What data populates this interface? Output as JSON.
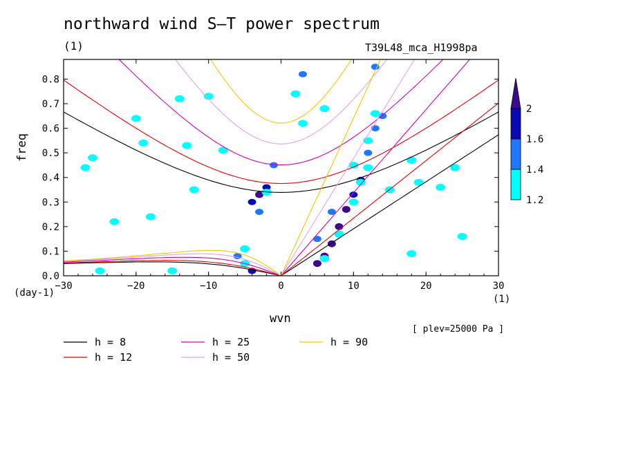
{
  "chart_data": {
    "type": "heatmap",
    "title": "northward wind S–T power spectrum",
    "units_label": "(1)",
    "run_id": "T39L48_mca_H1998pa",
    "xlabel": "wvn",
    "ylabel": "freq",
    "x_unit": "(1)",
    "y_unit": "(day-1)",
    "level_note": "[ plev=25000 Pa ]",
    "xlim": [
      -30,
      30
    ],
    "ylim": [
      0,
      0.88
    ],
    "x_ticks": [
      "−30",
      "−20",
      "−10",
      "0",
      "10",
      "20",
      "30"
    ],
    "y_ticks": [
      "0.0",
      "0.1",
      "0.2",
      "0.3",
      "0.4",
      "0.5",
      "0.6",
      "0.7",
      "0.8"
    ],
    "colorbar": {
      "levels": [
        "1.2",
        "1.4",
        "1.6",
        "2"
      ],
      "colors": [
        "#00ffff",
        "#1e78ff",
        "#0a0ab4",
        "#3c0a8c"
      ]
    },
    "power_regions": [
      {
        "x": -3,
        "y": 0.33,
        "level": 3
      },
      {
        "x": -2,
        "y": 0.36,
        "level": 2
      },
      {
        "x": -4,
        "y": 0.3,
        "level": 2
      },
      {
        "x": -5,
        "y": 0.11,
        "level": 3
      },
      {
        "x": -5,
        "y": 0.05,
        "level": 3
      },
      {
        "x": -4,
        "y": 0.02,
        "level": 2
      },
      {
        "x": 5,
        "y": 0.05,
        "level": 3
      },
      {
        "x": 6,
        "y": 0.08,
        "level": 3
      },
      {
        "x": 7,
        "y": 0.13,
        "level": 3
      },
      {
        "x": 8,
        "y": 0.2,
        "level": 3
      },
      {
        "x": 9,
        "y": 0.27,
        "level": 3
      },
      {
        "x": 10,
        "y": 0.33,
        "level": 2
      },
      {
        "x": 11,
        "y": 0.39,
        "level": 2
      },
      {
        "x": 10,
        "y": 0.45,
        "level": 2
      },
      {
        "x": 12,
        "y": 0.55,
        "level": 2
      },
      {
        "x": 13,
        "y": 0.6,
        "level": 1
      },
      {
        "x": 14,
        "y": 0.65,
        "level": 1
      },
      {
        "x": 13,
        "y": 0.85,
        "level": 1
      },
      {
        "x": -1,
        "y": 0.45,
        "level": 1
      },
      {
        "x": 3,
        "y": 0.82,
        "level": 1
      },
      {
        "x": 12,
        "y": 0.5,
        "level": 1
      },
      {
        "x": 7,
        "y": 0.26,
        "level": 1
      },
      {
        "x": 5,
        "y": 0.15,
        "level": 1
      },
      {
        "x": -6,
        "y": 0.08,
        "level": 1
      },
      {
        "x": -3,
        "y": 0.26,
        "level": 1
      },
      {
        "x": -26,
        "y": 0.48,
        "level": 0
      },
      {
        "x": -20,
        "y": 0.64,
        "level": 0
      },
      {
        "x": -19,
        "y": 0.54,
        "level": 0
      },
      {
        "x": -14,
        "y": 0.72,
        "level": 0
      },
      {
        "x": -13,
        "y": 0.53,
        "level": 0
      },
      {
        "x": -10,
        "y": 0.73,
        "level": 0
      },
      {
        "x": -8,
        "y": 0.51,
        "level": 0
      },
      {
        "x": 2,
        "y": 0.74,
        "level": 0
      },
      {
        "x": 6,
        "y": 0.68,
        "level": 0
      },
      {
        "x": 3,
        "y": 0.62,
        "level": 0
      },
      {
        "x": 12,
        "y": 0.44,
        "level": 0
      },
      {
        "x": 15,
        "y": 0.35,
        "level": 0
      },
      {
        "x": 19,
        "y": 0.38,
        "level": 0
      },
      {
        "x": 22,
        "y": 0.36,
        "level": 0
      },
      {
        "x": 18,
        "y": 0.47,
        "level": 0
      },
      {
        "x": 24,
        "y": 0.44,
        "level": 0
      },
      {
        "x": -27,
        "y": 0.44,
        "level": 0
      },
      {
        "x": -23,
        "y": 0.22,
        "level": 0
      },
      {
        "x": -18,
        "y": 0.24,
        "level": 0
      },
      {
        "x": -12,
        "y": 0.35,
        "level": 0
      },
      {
        "x": -15,
        "y": 0.02,
        "level": 0
      },
      {
        "x": -25,
        "y": 0.02,
        "level": 0
      },
      {
        "x": 18,
        "y": 0.09,
        "level": 0
      },
      {
        "x": 25,
        "y": 0.16,
        "level": 0
      },
      {
        "x": -5,
        "y": 0.11,
        "level": 0
      },
      {
        "x": -5,
        "y": 0.05,
        "level": 0
      },
      {
        "x": -2,
        "y": 0.34,
        "level": 0
      },
      {
        "x": 6,
        "y": 0.07,
        "level": 0
      },
      {
        "x": 8,
        "y": 0.17,
        "level": 0
      },
      {
        "x": 10,
        "y": 0.3,
        "level": 0
      },
      {
        "x": 11,
        "y": 0.38,
        "level": 0
      },
      {
        "x": 12,
        "y": 0.55,
        "level": 0
      },
      {
        "x": 10,
        "y": 0.45,
        "level": 0
      },
      {
        "x": 13,
        "y": 0.66,
        "level": 0
      }
    ],
    "series": [
      {
        "name": "h =  8",
        "h": 8,
        "color": "#000000"
      },
      {
        "name": "h = 12",
        "h": 12,
        "color": "#e60000"
      },
      {
        "name": "h = 25",
        "h": 25,
        "color": "#d200b4"
      },
      {
        "name": "h = 50",
        "h": 50,
        "color": "#e6a0e6"
      },
      {
        "name": "h = 90",
        "h": 90,
        "color": "#f0c800"
      }
    ]
  }
}
